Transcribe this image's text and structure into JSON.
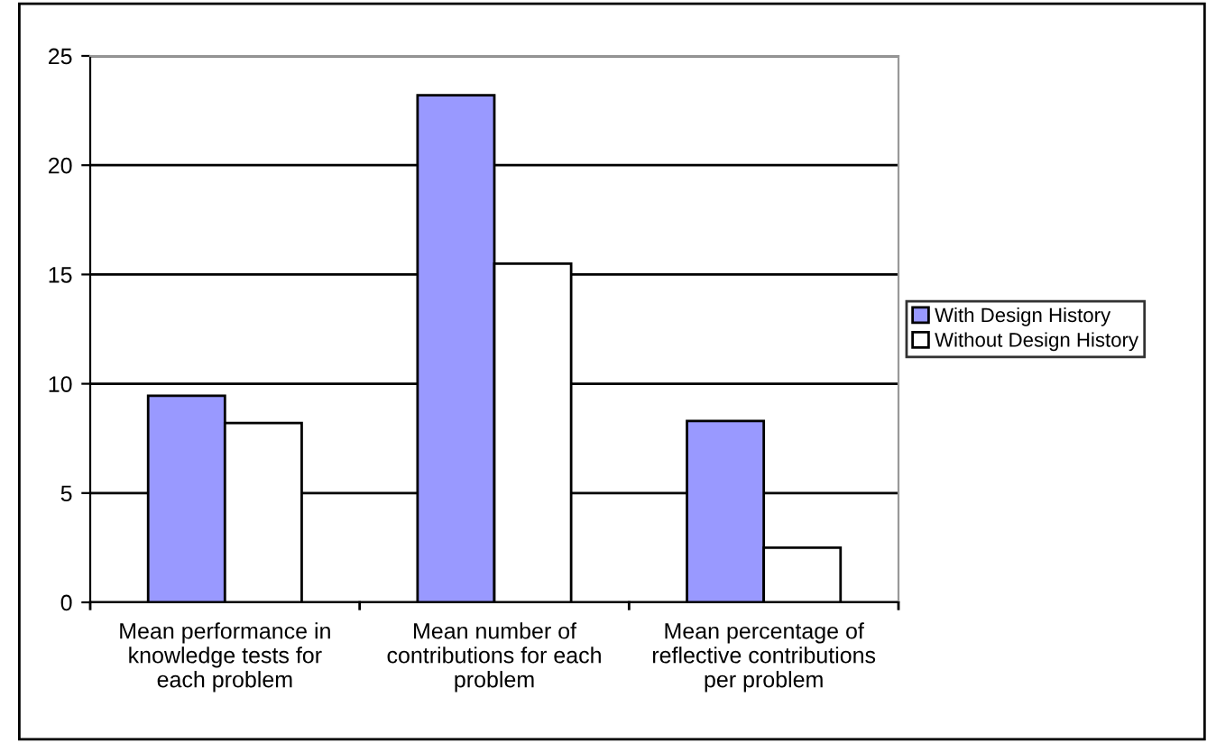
{
  "chart_data": {
    "type": "bar",
    "categories": [
      "Mean performance in\nknowledge tests for\neach problem",
      "Mean number of\ncontributions for each\nproblem",
      "Mean percentage of\nreflective contributions\nper problem"
    ],
    "series": [
      {
        "name": "With Design History",
        "color": "#9999ff",
        "values": [
          9.45,
          23.2,
          8.3
        ]
      },
      {
        "name": "Without Design History",
        "color": "#ffffff",
        "values": [
          8.2,
          15.5,
          2.5
        ]
      }
    ],
    "ylim": [
      0,
      25
    ],
    "yticks": [
      0,
      5,
      10,
      15,
      20,
      25
    ],
    "grid": "y",
    "legend": "right"
  }
}
